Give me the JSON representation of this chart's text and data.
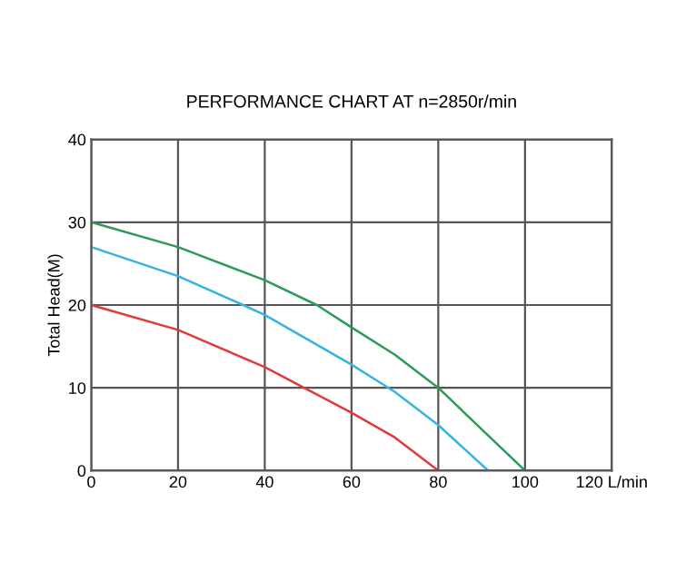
{
  "chart_data": {
    "type": "line",
    "title": "PERFORMANCE CHART AT n=2850r/min",
    "ylabel": "Total Head(M)",
    "xlim": [
      0,
      120
    ],
    "xticks": [
      0,
      20,
      40,
      60,
      80,
      100,
      {
        "value": 120,
        "label": "120 L/min"
      }
    ],
    "ylim": [
      0,
      40
    ],
    "yticks": [
      0,
      10,
      20,
      30,
      40
    ],
    "grid": true,
    "marker": "none",
    "line_style": "solid",
    "series": [
      {
        "color": "#2e9a5a",
        "x": [
          0,
          20,
          40,
          52,
          60,
          70,
          80,
          90,
          100
        ],
        "values": [
          30,
          27,
          23,
          20,
          17.3,
          14,
          10,
          5,
          0
        ]
      },
      {
        "color": "#35b4e0",
        "x": [
          0,
          20,
          35,
          40,
          60,
          70,
          80,
          91.5
        ],
        "values": [
          27,
          23.5,
          20,
          18.8,
          12.8,
          9.5,
          5.5,
          0
        ]
      },
      {
        "color": "#e03a3a",
        "x": [
          0,
          20,
          40,
          60,
          70,
          80
        ],
        "values": [
          20,
          17,
          12.5,
          7,
          4,
          0
        ]
      }
    ]
  }
}
